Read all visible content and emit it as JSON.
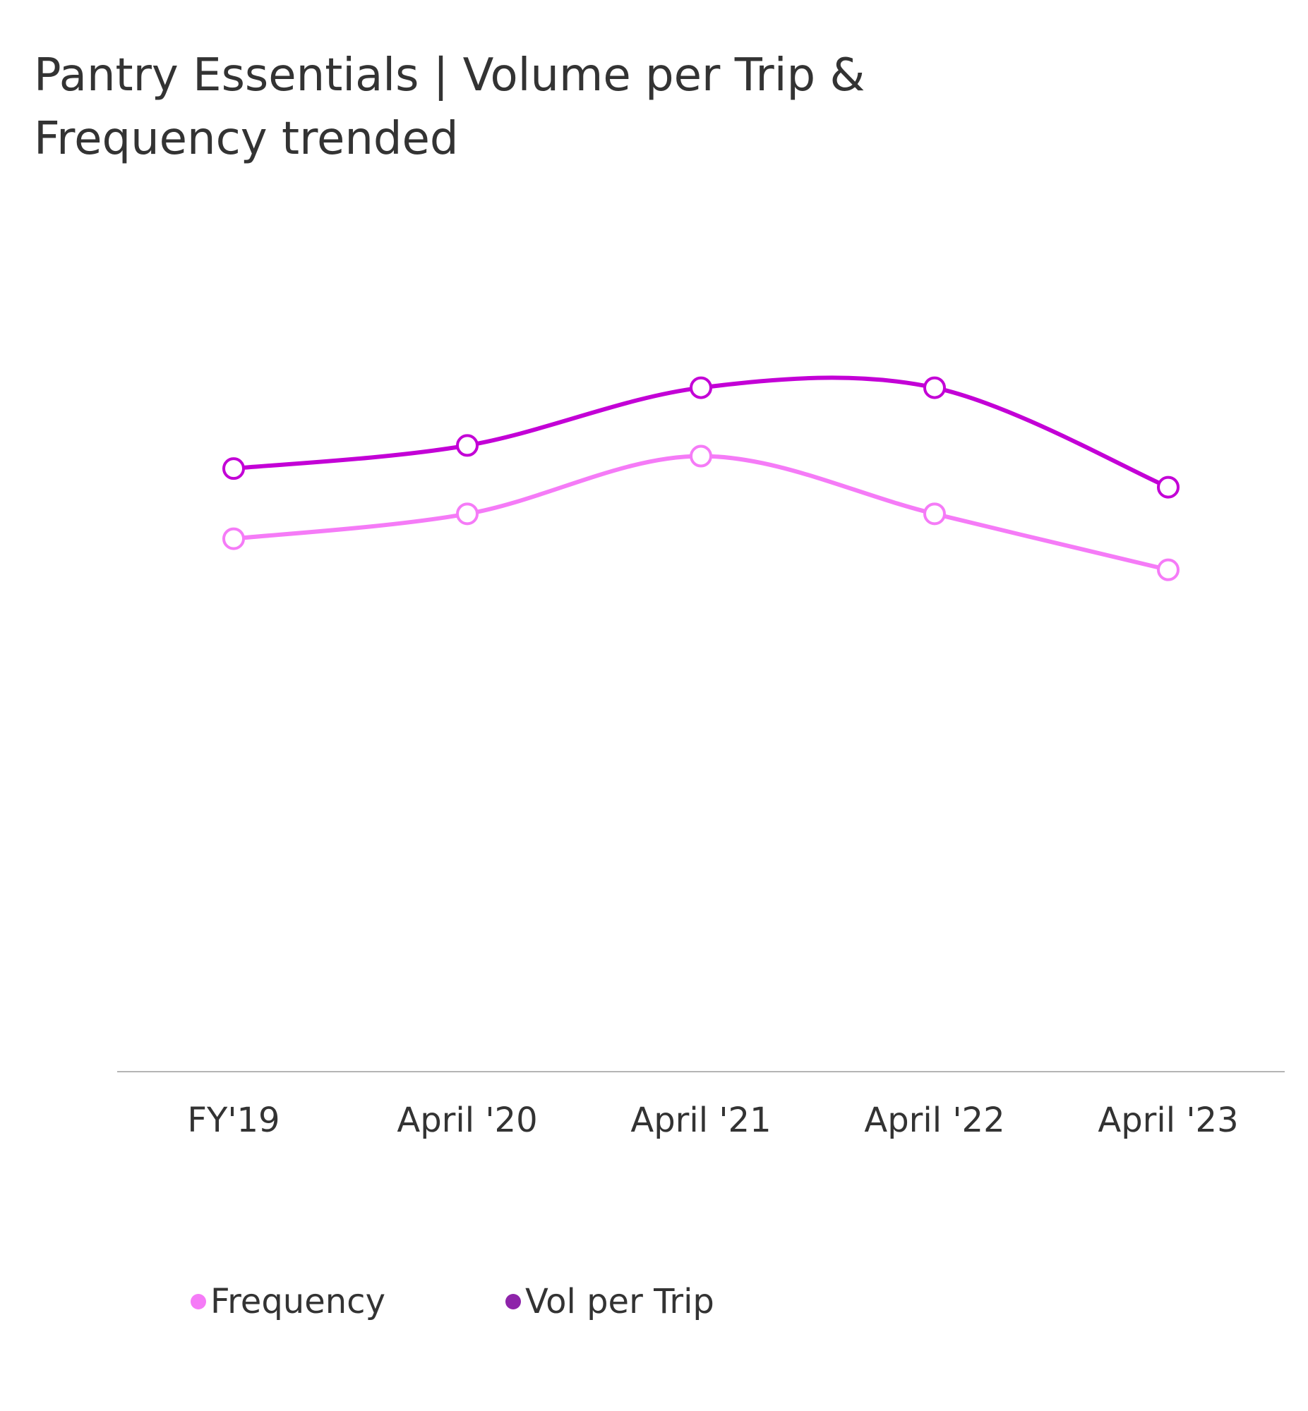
{
  "title_lines": [
    "Pantry Essentials | Volume per Trip &",
    "Frequency trended"
  ],
  "chart_data": {
    "type": "line",
    "title": "Pantry Essentials | Volume per Trip & Frequency trended",
    "xlabel": "",
    "ylabel": "",
    "categories": [
      "FY'19",
      "April '20",
      "April '21",
      "April '22",
      "April '23"
    ],
    "series": [
      {
        "name": "Frequency",
        "color": "#F57BF7",
        "values": [
          0.6,
          0.628,
          0.693,
          0.628,
          0.565
        ]
      },
      {
        "name": "Vol per Trip",
        "color": "#C300D6",
        "values": [
          0.679,
          0.705,
          0.77,
          0.77,
          0.658
        ]
      }
    ],
    "ylim": [
      0,
      1
    ],
    "y_axis_visible": false,
    "grid": false,
    "legend_position": "bottom-left",
    "legend_colors": {
      "Frequency": "#F57BF7",
      "Vol per Trip": "#8E24AA"
    }
  }
}
